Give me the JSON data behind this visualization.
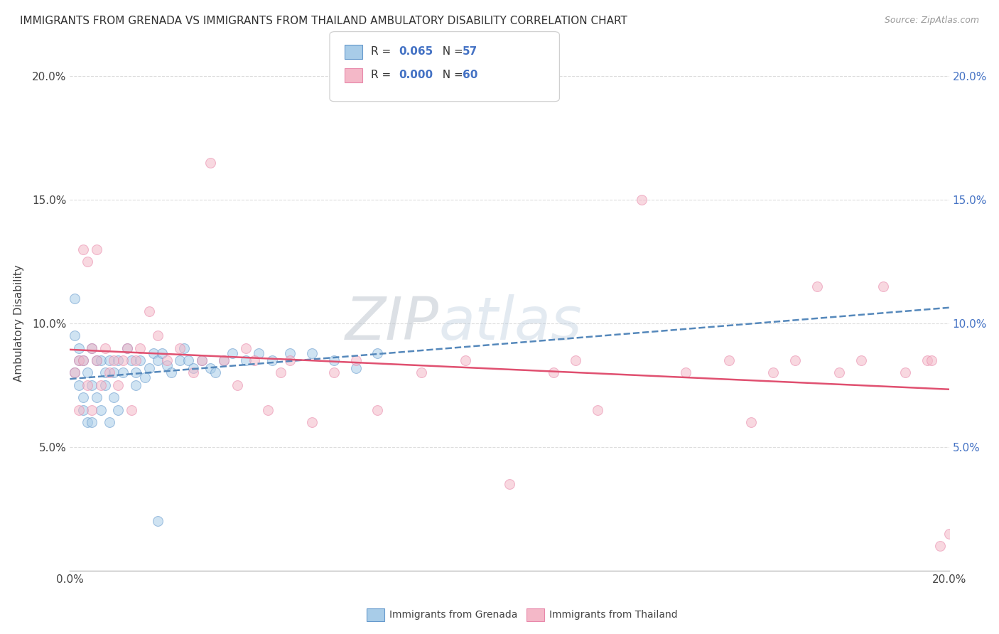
{
  "title": "IMMIGRANTS FROM GRENADA VS IMMIGRANTS FROM THAILAND AMBULATORY DISABILITY CORRELATION CHART",
  "source": "Source: ZipAtlas.com",
  "ylabel": "Ambulatory Disability",
  "watermark_zip": "ZIP",
  "watermark_atlas": "atlas",
  "xlim": [
    0.0,
    0.2
  ],
  "ylim": [
    0.0,
    0.2
  ],
  "xticks": [
    0.0,
    0.05,
    0.1,
    0.15,
    0.2
  ],
  "yticks": [
    0.0,
    0.05,
    0.1,
    0.15,
    0.2
  ],
  "xtick_labels": [
    "0.0%",
    "",
    "",
    "",
    "20.0%"
  ],
  "ytick_labels_left": [
    "",
    "5.0%",
    "10.0%",
    "15.0%",
    "20.0%"
  ],
  "ytick_labels_right": [
    "",
    "5.0%",
    "10.0%",
    "15.0%",
    "20.0%"
  ],
  "series": [
    {
      "label": "Immigrants from Grenada",
      "R": 0.065,
      "N": 57,
      "color": "#a8cce8",
      "edge_color": "#6699cc",
      "line_color": "#5588bb",
      "line_style": "--",
      "x": [
        0.001,
        0.001,
        0.001,
        0.002,
        0.002,
        0.002,
        0.003,
        0.003,
        0.003,
        0.004,
        0.004,
        0.005,
        0.005,
        0.005,
        0.006,
        0.006,
        0.007,
        0.007,
        0.008,
        0.008,
        0.009,
        0.009,
        0.01,
        0.01,
        0.011,
        0.011,
        0.012,
        0.013,
        0.014,
        0.015,
        0.015,
        0.016,
        0.017,
        0.018,
        0.019,
        0.02,
        0.021,
        0.022,
        0.023,
        0.025,
        0.026,
        0.027,
        0.028,
        0.03,
        0.032,
        0.033,
        0.035,
        0.037,
        0.04,
        0.043,
        0.046,
        0.05,
        0.055,
        0.06,
        0.065,
        0.07,
        0.02
      ],
      "y": [
        0.11,
        0.095,
        0.08,
        0.09,
        0.075,
        0.085,
        0.085,
        0.07,
        0.065,
        0.08,
        0.06,
        0.09,
        0.075,
        0.06,
        0.085,
        0.07,
        0.085,
        0.065,
        0.08,
        0.075,
        0.085,
        0.06,
        0.08,
        0.07,
        0.085,
        0.065,
        0.08,
        0.09,
        0.085,
        0.08,
        0.075,
        0.085,
        0.078,
        0.082,
        0.088,
        0.085,
        0.088,
        0.083,
        0.08,
        0.085,
        0.09,
        0.085,
        0.082,
        0.085,
        0.082,
        0.08,
        0.085,
        0.088,
        0.085,
        0.088,
        0.085,
        0.088,
        0.088,
        0.085,
        0.082,
        0.088,
        0.02
      ]
    },
    {
      "label": "Immigrants from Thailand",
      "R": 0.0,
      "N": 60,
      "color": "#f4b8c8",
      "edge_color": "#e888aa",
      "line_color": "#e05070",
      "line_style": "-",
      "x": [
        0.001,
        0.002,
        0.002,
        0.003,
        0.003,
        0.004,
        0.004,
        0.005,
        0.005,
        0.006,
        0.006,
        0.007,
        0.008,
        0.009,
        0.01,
        0.011,
        0.012,
        0.013,
        0.014,
        0.015,
        0.016,
        0.018,
        0.02,
        0.022,
        0.025,
        0.028,
        0.03,
        0.032,
        0.035,
        0.038,
        0.04,
        0.042,
        0.045,
        0.048,
        0.05,
        0.055,
        0.06,
        0.065,
        0.07,
        0.08,
        0.09,
        0.1,
        0.11,
        0.115,
        0.12,
        0.13,
        0.14,
        0.15,
        0.155,
        0.16,
        0.165,
        0.17,
        0.175,
        0.18,
        0.185,
        0.19,
        0.195,
        0.196,
        0.198,
        0.2
      ],
      "y": [
        0.08,
        0.085,
        0.065,
        0.13,
        0.085,
        0.125,
        0.075,
        0.09,
        0.065,
        0.13,
        0.085,
        0.075,
        0.09,
        0.08,
        0.085,
        0.075,
        0.085,
        0.09,
        0.065,
        0.085,
        0.09,
        0.105,
        0.095,
        0.085,
        0.09,
        0.08,
        0.085,
        0.165,
        0.085,
        0.075,
        0.09,
        0.085,
        0.065,
        0.08,
        0.085,
        0.06,
        0.08,
        0.085,
        0.065,
        0.08,
        0.085,
        0.035,
        0.08,
        0.085,
        0.065,
        0.15,
        0.08,
        0.085,
        0.06,
        0.08,
        0.085,
        0.115,
        0.08,
        0.085,
        0.115,
        0.08,
        0.085,
        0.085,
        0.01,
        0.015
      ]
    }
  ],
  "background_color": "#ffffff",
  "grid_color": "#dddddd",
  "title_fontsize": 11,
  "axis_label_fontsize": 11,
  "tick_fontsize": 11,
  "dot_size": 100,
  "dot_alpha": 0.55
}
